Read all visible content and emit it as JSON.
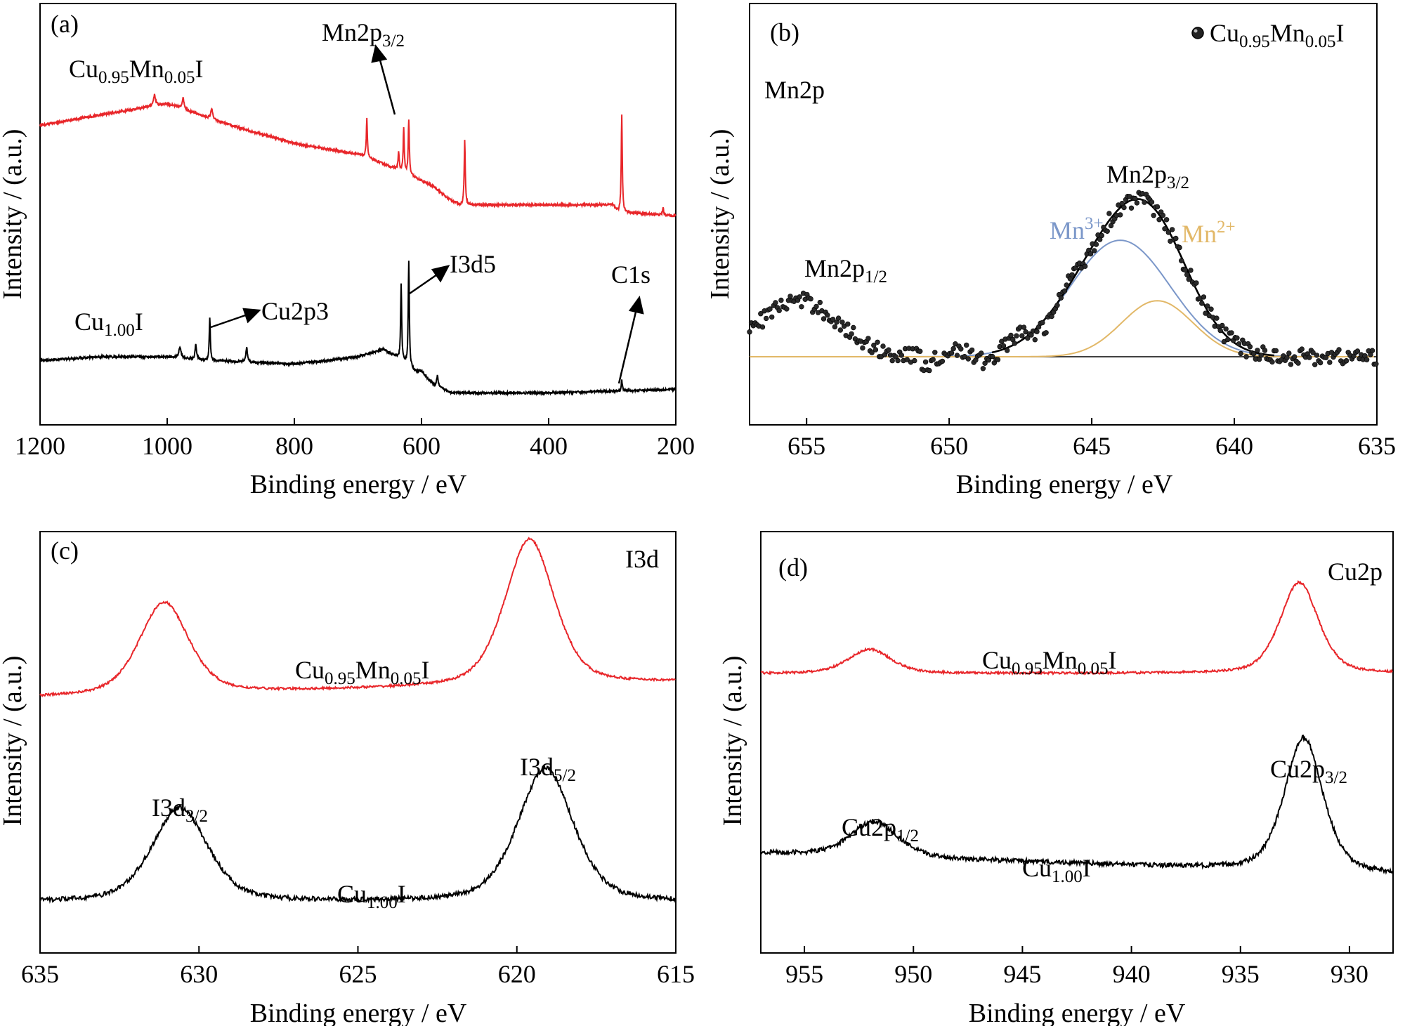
{
  "chart_data": [
    {
      "id": "a",
      "type": "line",
      "panel_label": "(a)",
      "xlabel": "Binding energy / eV",
      "ylabel": "Intensity / (a.u.)",
      "xlim": [
        1200,
        200
      ],
      "x_reversed": true,
      "xticks": [
        1200,
        1000,
        800,
        600,
        400,
        200
      ],
      "ylim": [
        0,
        10
      ],
      "y_ticks_labeled": false,
      "legend": "none",
      "series": [
        {
          "label_main": "Cu",
          "label_sub1": "0.95",
          "label_mid": "Mn",
          "label_sub2": "0.05",
          "label_end": "I",
          "color": "#e8262a",
          "baseline": [
            [
              1200,
              7.7
            ],
            [
              1100,
              8.0
            ],
            [
              1000,
              8.3
            ],
            [
              900,
              7.7
            ],
            [
              800,
              7.2
            ],
            [
              700,
              6.9
            ],
            [
              640,
              6.5
            ],
            [
              580,
              6.0
            ],
            [
              560,
              5.7
            ],
            [
              540,
              5.5
            ],
            [
              500,
              5.5
            ],
            [
              400,
              5.5
            ],
            [
              300,
              5.5
            ],
            [
              290,
              5.3
            ],
            [
              200,
              5.2
            ]
          ],
          "peaks": [
            [
              1020,
              0.3,
              4
            ],
            [
              975,
              0.3,
              4
            ],
            [
              930,
              0.3,
              3
            ],
            [
              686,
              1.1,
              2
            ],
            [
              636,
              0.5,
              2
            ],
            [
              628,
              1.2,
              2
            ],
            [
              620,
              1.5,
              2
            ],
            [
              532,
              1.8,
              2
            ],
            [
              285,
              2.7,
              2
            ],
            [
              220,
              0.2,
              2
            ]
          ]
        },
        {
          "label_main": "Cu",
          "label_sub1": "1.00",
          "label_mid": "",
          "label_sub2": "",
          "label_end": "I",
          "color": "#000000",
          "baseline": [
            [
              1200,
              1.2
            ],
            [
              1100,
              1.3
            ],
            [
              1000,
              1.3
            ],
            [
              940,
              1.2
            ],
            [
              800,
              1.1
            ],
            [
              700,
              1.3
            ],
            [
              660,
              1.5
            ],
            [
              640,
              1.3
            ],
            [
              610,
              0.9
            ],
            [
              600,
              0.9
            ],
            [
              580,
              0.5
            ],
            [
              550,
              0.3
            ],
            [
              400,
              0.3
            ],
            [
              300,
              0.35
            ],
            [
              200,
              0.4
            ]
          ],
          "peaks": [
            [
              980,
              0.3,
              4
            ],
            [
              955,
              0.4,
              3
            ],
            [
              933,
              1.2,
              2
            ],
            [
              875,
              0.4,
              3
            ],
            [
              632,
              2.1,
              2
            ],
            [
              620,
              2.9,
              2
            ],
            [
              575,
              0.3,
              3
            ],
            [
              285,
              0.3,
              2
            ]
          ]
        }
      ],
      "annotations": [
        {
          "base": "Mn2p",
          "sub": "3/2"
        },
        {
          "base": "I3d5",
          "sub": ""
        },
        {
          "base": "Cu2p3",
          "sub": ""
        },
        {
          "base": "C1s",
          "sub": ""
        }
      ]
    },
    {
      "id": "b",
      "type": "scatter",
      "panel_label": "(b)",
      "region_label": "Mn2p",
      "xlabel": "Binding energy / eV",
      "ylabel": "Intensity / (a.u.)",
      "xlim": [
        657,
        635
      ],
      "x_reversed": true,
      "xticks": [
        655,
        650,
        645,
        640,
        635
      ],
      "ylim": [
        0,
        10
      ],
      "y_ticks_labeled": false,
      "legend": "top-right",
      "legend_entry": {
        "main": "Cu",
        "sub1": "0.95",
        "mid": "Mn",
        "sub2": "0.05",
        "end": "I"
      },
      "background_level": 1.0,
      "components": [
        {
          "name": "Mn",
          "sup": "3+",
          "center": 644.0,
          "height": 3.95,
          "sigma": 1.75,
          "color": "#7b97c9"
        },
        {
          "name": "Mn",
          "sup": "2+",
          "center": 642.7,
          "height": 1.9,
          "sigma": 1.25,
          "color": "#e2b868"
        }
      ],
      "mn2p12": {
        "center": 655.3,
        "height": 1.9,
        "sigma": 1.4
      },
      "annotations": [
        {
          "base": "Mn2p",
          "sub": "3/2"
        },
        {
          "base": "Mn2p",
          "sub": "1/2"
        }
      ]
    },
    {
      "id": "c",
      "type": "line",
      "panel_label": "(c)",
      "region_label": "I3d",
      "xlabel": "Binding energy / eV",
      "ylabel": "Intensity / (a.u.)",
      "xlim": [
        635,
        615
      ],
      "x_reversed": true,
      "xticks": [
        635,
        630,
        625,
        620,
        615
      ],
      "ylim": [
        0,
        10
      ],
      "y_ticks_labeled": false,
      "legend": "none",
      "series": [
        {
          "label_main": "Cu",
          "label_sub1": "0.95",
          "label_mid": "Mn",
          "label_sub2": "0.05",
          "label_end": "I",
          "color": "#e8262a",
          "base": 6.7,
          "slope": -0.02,
          "peaks": [
            [
              631.1,
              2.45,
              0.8
            ],
            [
              619.6,
              3.9,
              0.8
            ]
          ]
        },
        {
          "label_main": "Cu",
          "label_sub1": "1.00",
          "label_mid": "",
          "label_sub2": "",
          "label_end": "I",
          "color": "#000000",
          "base": 0.85,
          "slope": 0.0,
          "peaks": [
            [
              630.6,
              2.5,
              0.9
            ],
            [
              619.1,
              3.55,
              0.9
            ]
          ]
        }
      ],
      "annotations": [
        {
          "base": "I3d",
          "sub": "3/2"
        },
        {
          "base": "I3d",
          "sub": "5/2"
        }
      ]
    },
    {
      "id": "d",
      "type": "line",
      "panel_label": "(d)",
      "region_label": "Cu2p",
      "xlabel": "Binding energy / eV",
      "ylabel": "Intensity / (a.u.)",
      "xlim": [
        957,
        928
      ],
      "x_reversed": true,
      "xticks": [
        955,
        950,
        945,
        940,
        935,
        930
      ],
      "ylim": [
        0,
        10
      ],
      "y_ticks_labeled": false,
      "legend": "none",
      "series": [
        {
          "label_main": "Cu",
          "label_sub1": "0.95",
          "label_mid": "Mn",
          "label_sub2": "0.05",
          "label_end": "I",
          "color": "#e8262a",
          "base": 7.0,
          "slope": 0.0,
          "peaks": [
            [
              952.0,
              0.65,
              1.0
            ],
            [
              932.3,
              2.45,
              0.9
            ]
          ]
        },
        {
          "label_main": "Cu",
          "label_sub1": "1.00",
          "label_mid": "",
          "label_sub2": "",
          "label_end": "I",
          "color": "#000000",
          "base": 1.6,
          "slope": 0.02,
          "peaks": [
            [
              951.8,
              0.95,
              1.1
            ],
            [
              932.1,
              3.6,
              0.9
            ]
          ]
        }
      ],
      "annotations": [
        {
          "base": "Cu2p",
          "sub": "1/2"
        },
        {
          "base": "Cu2p",
          "sub": "3/2"
        }
      ]
    }
  ]
}
